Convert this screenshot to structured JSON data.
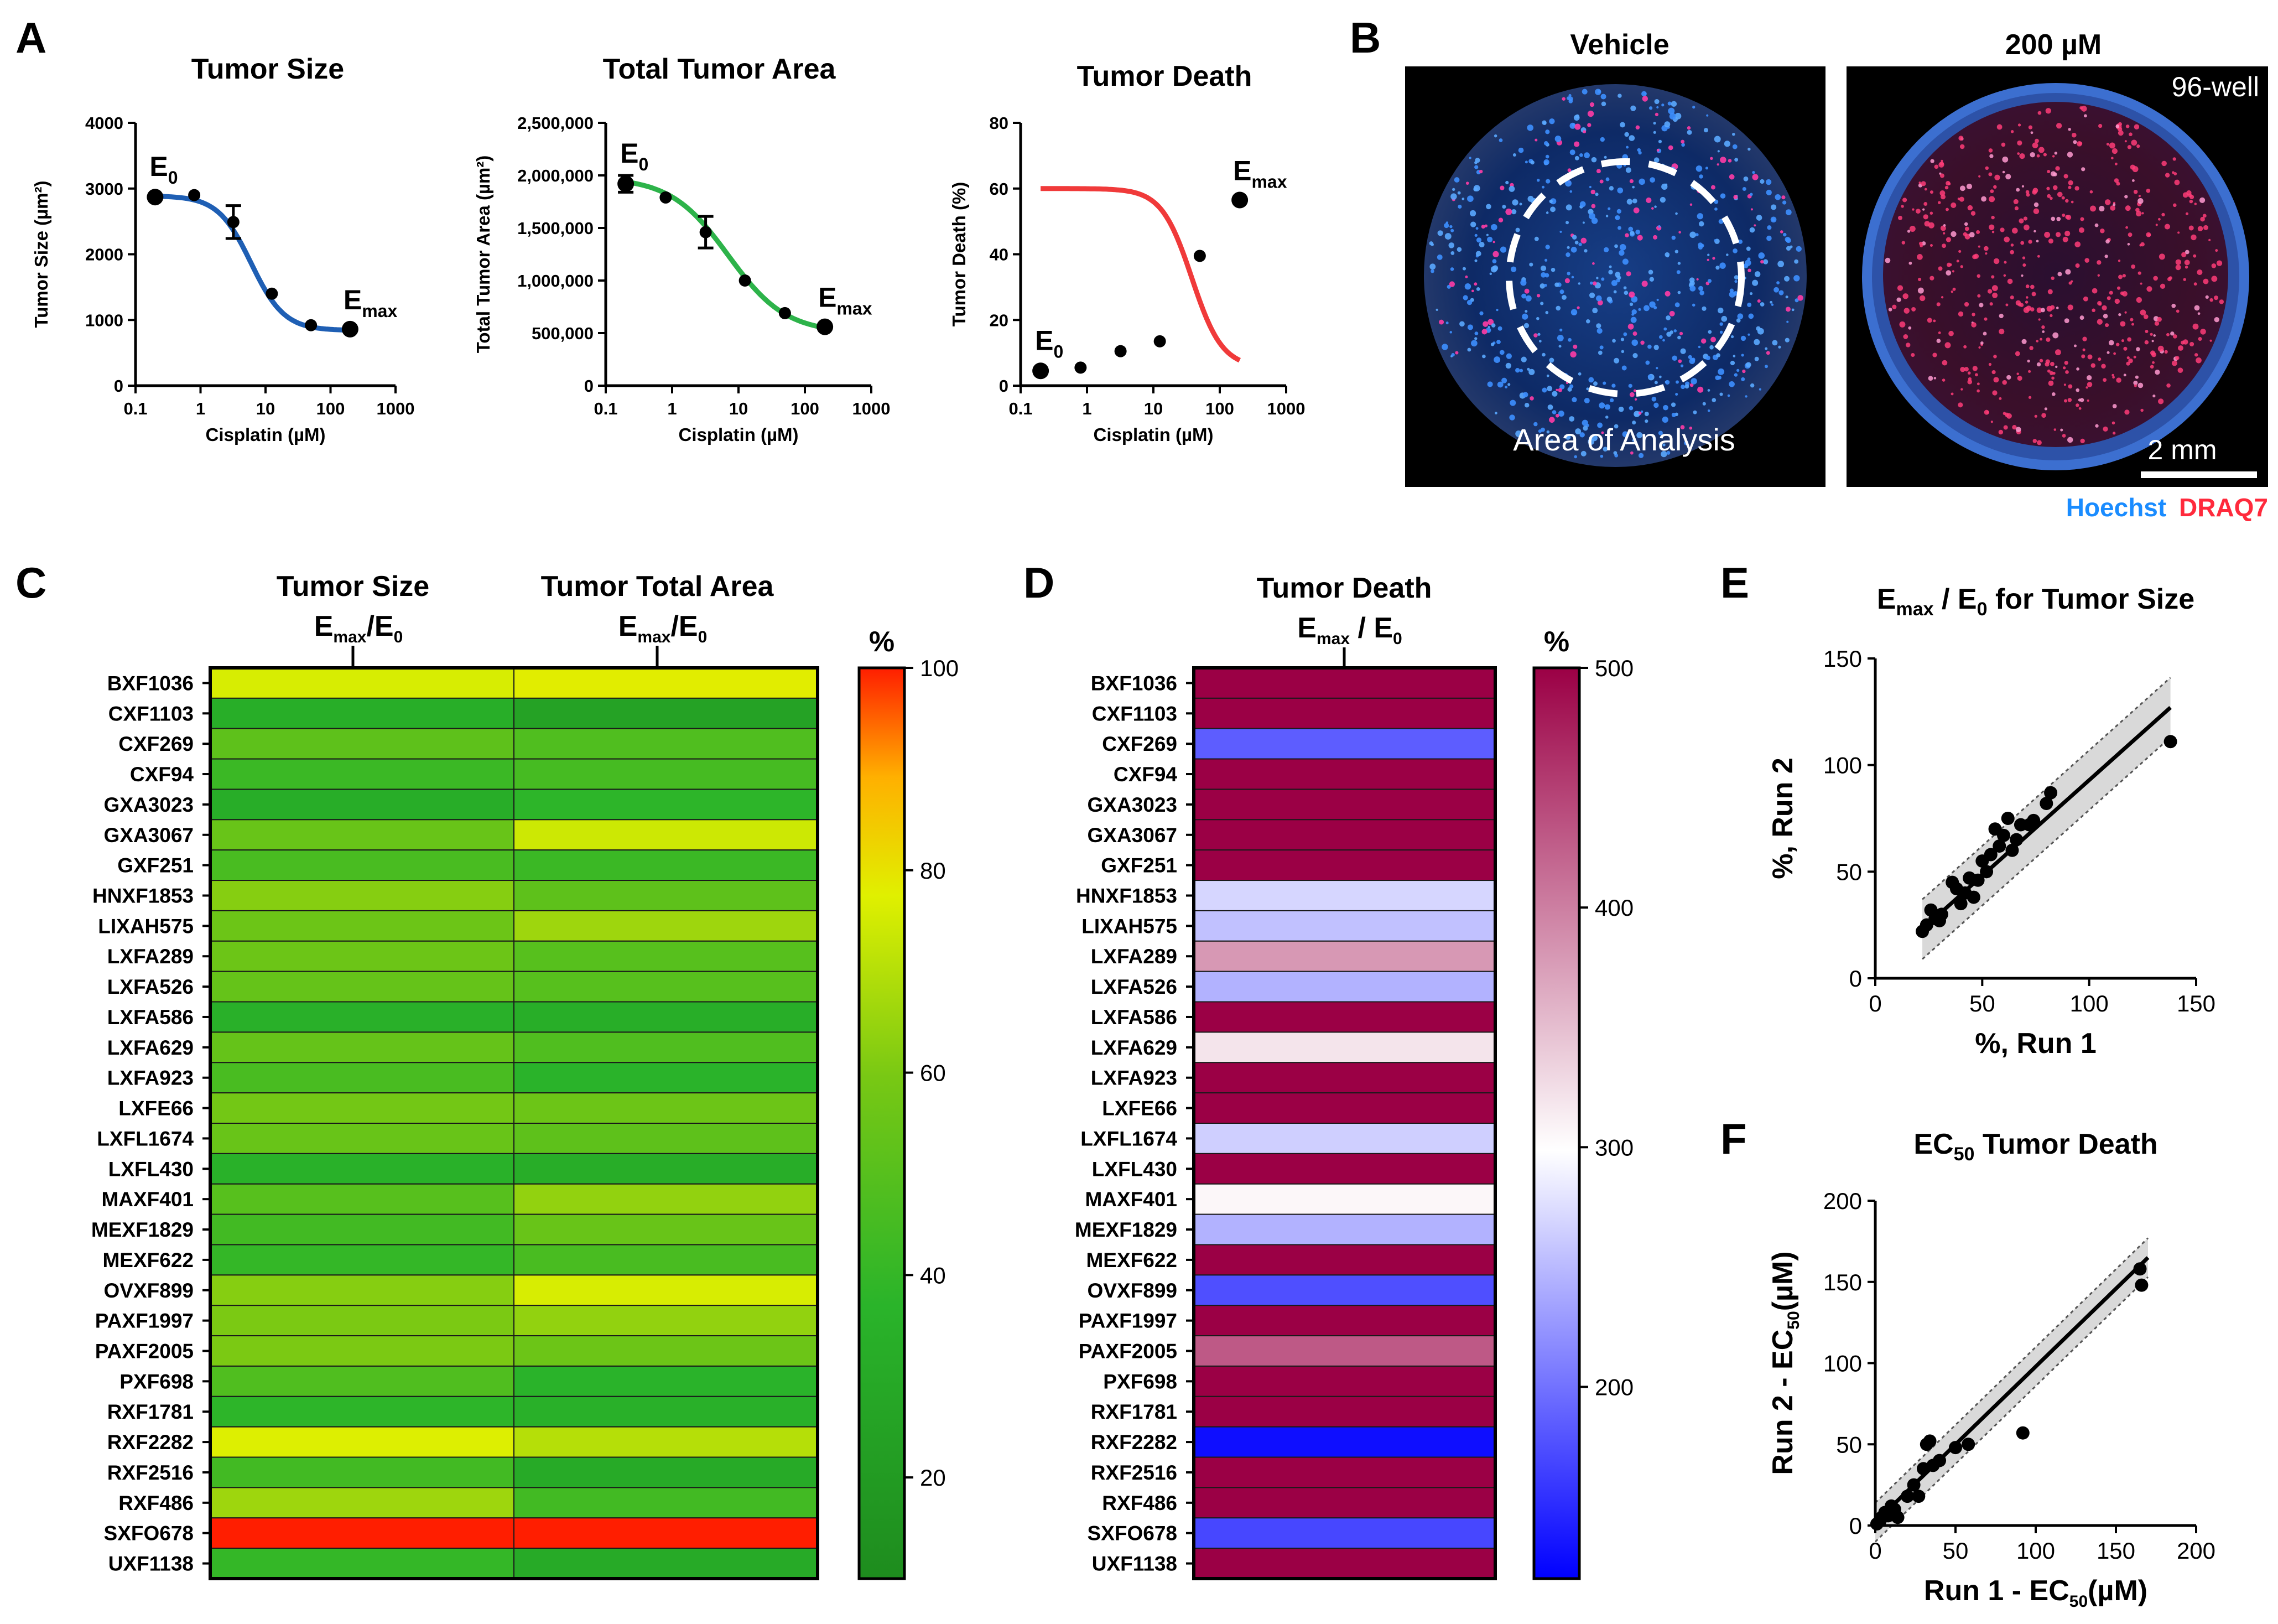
{
  "panels": {
    "A": "A",
    "B": "B",
    "C": "C",
    "D": "D",
    "E": "E",
    "F": "F"
  },
  "panel_a": {
    "xlabel": "Cisplatin (µM)",
    "x_ticks": [
      "0.1",
      "1",
      "10",
      "100",
      "1000"
    ],
    "x": [
      0.2,
      0.8,
      3.2,
      12.5,
      50,
      200
    ],
    "charts": [
      {
        "title": "Tumor Size",
        "ylabel": "Tumor Size (µm²)",
        "y_ticks": [
          "0",
          "1000",
          "2000",
          "3000",
          "4000"
        ],
        "ylim": [
          0,
          4000
        ],
        "values": [
          2870,
          2900,
          2490,
          1400,
          920,
          860
        ],
        "errors": [
          0,
          0,
          250,
          0,
          0,
          0
        ],
        "fit": {
          "top": 2890,
          "bottom": 840,
          "ec50": 6,
          "hill": 1.7
        },
        "color": "#1f5fb4",
        "start_label": "E",
        "start_sub": "0",
        "end_label": "E",
        "end_sub": "max"
      },
      {
        "title": "Total Tumor Area",
        "ylabel": "Total Tumor Area (µm²)",
        "y_ticks": [
          "0",
          "500,000",
          "1,000,000",
          "1,500,000",
          "2,000,000",
          "2,500,000"
        ],
        "ylim": [
          0,
          2500000
        ],
        "values": [
          1920000,
          1790000,
          1460000,
          1000000,
          690000,
          560000
        ],
        "errors": [
          80000,
          0,
          150000,
          0,
          0,
          0
        ],
        "fit": {
          "top": 1980000,
          "bottom": 500000,
          "ec50": 7,
          "hill": 1.0
        },
        "color": "#2db34a",
        "start_label": "E",
        "start_sub": "0",
        "end_label": "E",
        "end_sub": "max"
      },
      {
        "title": "Tumor Death",
        "ylabel": "Tumor Death (%)",
        "y_ticks": [
          "0",
          "20",
          "40",
          "60",
          "80"
        ],
        "ylim": [
          0,
          80
        ],
        "values": [
          4.5,
          5.5,
          10.5,
          13.5,
          39.5,
          56.5
        ],
        "errors": [
          0,
          0,
          0,
          0,
          0,
          0
        ],
        "fit": {
          "top": 60,
          "bottom": 5.5,
          "ec50": 38,
          "hill": 1.9
        },
        "color": "#f03a3a",
        "start_label": "E",
        "start_sub": "0",
        "end_label": "E",
        "end_sub": "max"
      }
    ]
  },
  "panel_b": {
    "vehicle_title": "Vehicle",
    "treated_title": "200 µM",
    "plate_label": "96-well",
    "analysis_label": "Area of Analysis",
    "scale_label": "2 mm",
    "legend_hoechst": "Hoechst",
    "legend_draq7": "DRAQ7",
    "hoechst_color": "#1a8cff",
    "draq7_color": "#ff2a3c"
  },
  "chart_data": [
    {
      "type": "heatmap",
      "title": "Tumor Size / Tumor Total Area",
      "columns": [
        "Tumor Size",
        "Tumor Total Area"
      ],
      "col_sub_main": "E",
      "col_sub_a": "max",
      "col_sub_b": "/E",
      "col_sub_c": "0",
      "colorbar_label": "%",
      "colorbar_ticks": [
        "20",
        "40",
        "60",
        "80",
        "100"
      ],
      "range": [
        10,
        100
      ],
      "rows": [
        "BXF1036",
        "CXF1103",
        "CXF269",
        "CXF94",
        "GXA3023",
        "GXA3067",
        "GXF251",
        "HNXF1853",
        "LIXAH575",
        "LXFA289",
        "LXFA526",
        "LXFA586",
        "LXFA629",
        "LXFA923",
        "LXFE66",
        "LXFL1674",
        "LXFL430",
        "MAXF401",
        "MEXF1829",
        "MEXF622",
        "OVXF899",
        "PAXF1997",
        "PAXF2005",
        "PXF698",
        "RXF1781",
        "RXF2282",
        "RXF2516",
        "RXF486",
        "SXFO678",
        "UXF1138"
      ],
      "values": [
        [
          76,
          78
        ],
        [
          33,
          25
        ],
        [
          52,
          48
        ],
        [
          42,
          45
        ],
        [
          32,
          38
        ],
        [
          55,
          74
        ],
        [
          46,
          42
        ],
        [
          62,
          52
        ],
        [
          56,
          66
        ],
        [
          56,
          50
        ],
        [
          54,
          50
        ],
        [
          34,
          33
        ],
        [
          54,
          48
        ],
        [
          46,
          36
        ],
        [
          58,
          56
        ],
        [
          55,
          52
        ],
        [
          35,
          32
        ],
        [
          50,
          64
        ],
        [
          44,
          55
        ],
        [
          40,
          46
        ],
        [
          62,
          76
        ],
        [
          60,
          64
        ],
        [
          60,
          56
        ],
        [
          48,
          36
        ],
        [
          38,
          34
        ],
        [
          77,
          70
        ],
        [
          44,
          30
        ],
        [
          66,
          44
        ],
        [
          100,
          100
        ],
        [
          40,
          30
        ]
      ]
    },
    {
      "type": "heatmap",
      "title": "Tumor Death",
      "columns": [
        "Tumor Death"
      ],
      "col_sub_main": "E",
      "col_sub_a": "max",
      "col_sub_b": " / E",
      "col_sub_c": "0",
      "colorbar_label": "%",
      "colorbar_ticks": [
        "200",
        "300",
        "400",
        "500"
      ],
      "range": [
        120,
        500
      ],
      "rows": [
        "BXF1036",
        "CXF1103",
        "CXF269",
        "CXF94",
        "GXA3023",
        "GXA3067",
        "GXF251",
        "HNXF1853",
        "LIXAH575",
        "LXFA289",
        "LXFA526",
        "LXFA586",
        "LXFA629",
        "LXFA923",
        "LXFE66",
        "LXFL1674",
        "LXFL430",
        "MAXF401",
        "MEXF1829",
        "MEXF622",
        "OVXF899",
        "PAXF1997",
        "PAXF2005",
        "PXF698",
        "RXF1781",
        "RXF2282",
        "RXF2516",
        "RXF486",
        "SXFO678",
        "UXF1138"
      ],
      "values": [
        500,
        500,
        185,
        500,
        500,
        500,
        500,
        270,
        255,
        380,
        245,
        500,
        320,
        500,
        500,
        265,
        500,
        305,
        245,
        500,
        175,
        500,
        430,
        500,
        500,
        130,
        500,
        500,
        170,
        500
      ]
    },
    {
      "type": "scatter",
      "title_main": "E",
      "title_sub1": "max",
      "title_mid": " / E",
      "title_sub2": "0",
      "title_tail": " for Tumor Size",
      "xlabel": "%, Run 1",
      "ylabel": "%, Run 2",
      "xlim": [
        0,
        150
      ],
      "ylim": [
        0,
        150
      ],
      "x_ticks": [
        "0",
        "50",
        "100",
        "150"
      ],
      "y_ticks": [
        "0",
        "50",
        "100",
        "150"
      ],
      "points": [
        [
          22,
          22
        ],
        [
          24,
          25
        ],
        [
          26,
          32
        ],
        [
          28,
          28
        ],
        [
          30,
          27
        ],
        [
          31,
          30
        ],
        [
          36,
          45
        ],
        [
          38,
          42
        ],
        [
          40,
          35
        ],
        [
          42,
          40
        ],
        [
          44,
          47
        ],
        [
          46,
          38
        ],
        [
          48,
          46
        ],
        [
          50,
          55
        ],
        [
          52,
          50
        ],
        [
          54,
          58
        ],
        [
          56,
          70
        ],
        [
          58,
          62
        ],
        [
          60,
          67
        ],
        [
          62,
          75
        ],
        [
          64,
          60
        ],
        [
          66,
          65
        ],
        [
          68,
          72
        ],
        [
          72,
          72
        ],
        [
          74,
          74
        ],
        [
          80,
          82
        ],
        [
          82,
          87
        ],
        [
          138,
          111
        ]
      ],
      "fit_line": [
        [
          22,
          23
        ],
        [
          138,
          127
        ]
      ],
      "band_half_width": 14
    },
    {
      "type": "scatter",
      "title_main": "EC",
      "title_sub1": "50",
      "title_tail": " Tumor Death",
      "xlabel_main": "Run 1 - EC",
      "xlabel_sub": "50",
      "xlabel_tail": "(µM)",
      "ylabel_main": "Run 2 - EC",
      "ylabel_sub": "50",
      "ylabel_tail": "(µM)",
      "xlim": [
        0,
        200
      ],
      "ylim": [
        0,
        200
      ],
      "x_ticks": [
        "0",
        "50",
        "100",
        "150",
        "200"
      ],
      "y_ticks": [
        "0",
        "50",
        "100",
        "150",
        "200"
      ],
      "points": [
        [
          1,
          1
        ],
        [
          3,
          3
        ],
        [
          4,
          5
        ],
        [
          6,
          8
        ],
        [
          8,
          6
        ],
        [
          10,
          12
        ],
        [
          12,
          10
        ],
        [
          14,
          5
        ],
        [
          20,
          18
        ],
        [
          24,
          25
        ],
        [
          27,
          18
        ],
        [
          30,
          35
        ],
        [
          32,
          50
        ],
        [
          34,
          52
        ],
        [
          36,
          37
        ],
        [
          40,
          40
        ],
        [
          50,
          48
        ],
        [
          58,
          50
        ],
        [
          92,
          57
        ],
        [
          165,
          158
        ],
        [
          166,
          148
        ]
      ],
      "fit_line": [
        [
          0,
          2
        ],
        [
          170,
          165
        ]
      ],
      "band_half_width": 12
    }
  ]
}
